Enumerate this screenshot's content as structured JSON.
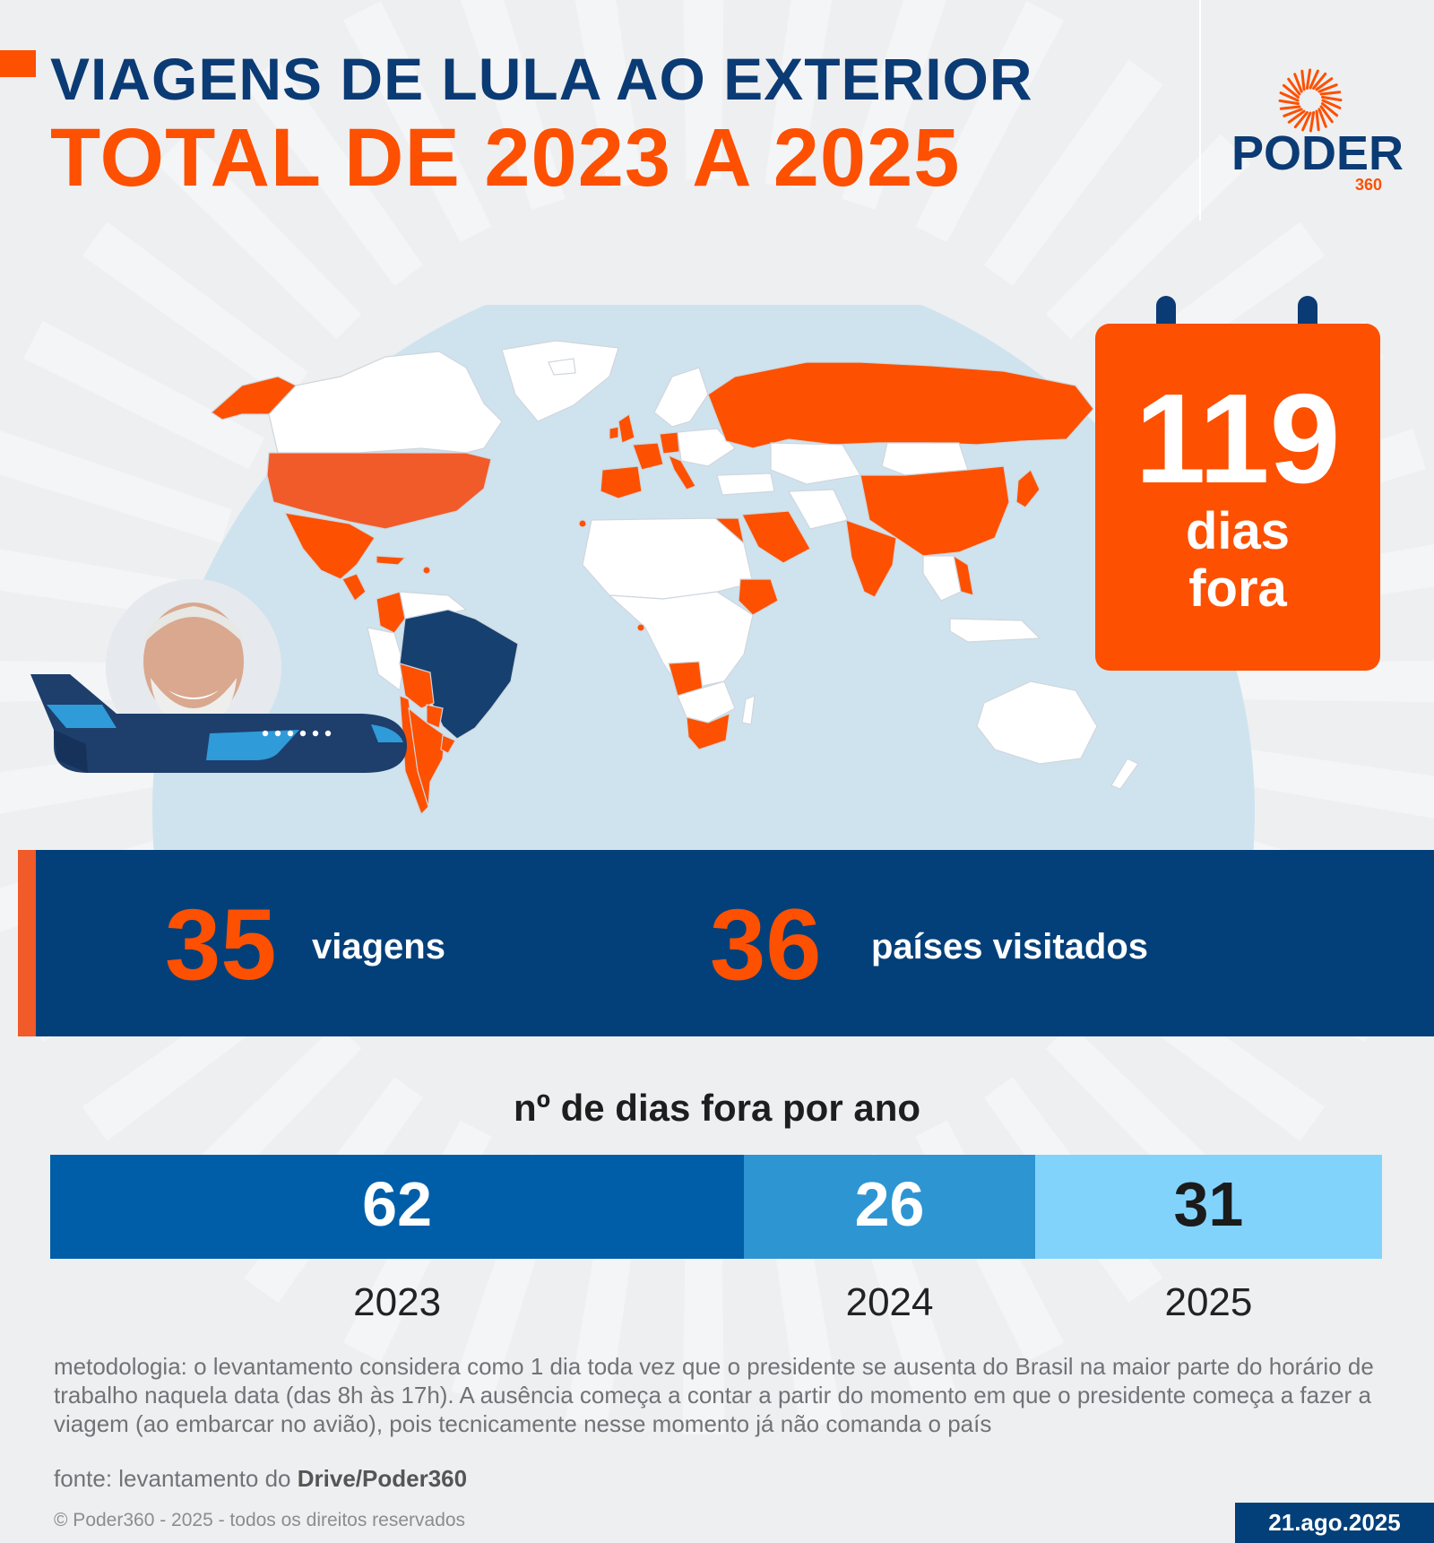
{
  "header": {
    "title_line1": "VIAGENS DE LULA AO EXTERIOR",
    "title_line2": "TOTAL DE 2023 A 2025"
  },
  "logo": {
    "word": "PODER",
    "number": "360"
  },
  "calendar": {
    "value": "119",
    "line1": "dias",
    "line2": "fora"
  },
  "stats": {
    "trips_value": "35",
    "trips_label": "viagens",
    "countries_value": "36",
    "countries_label": "países visitados"
  },
  "map": {
    "visited_color": "#fd5000",
    "brazil_color": "#16406f",
    "other_color": "#ffffff",
    "ocean_color": "#cfe3ee"
  },
  "chart_data": {
    "type": "bar",
    "title": "nº de dias fora por ano",
    "categories": [
      "2023",
      "2024",
      "2025"
    ],
    "values": [
      62,
      26,
      31
    ],
    "colors": [
      "#005ea9",
      "#2e95d3",
      "#82d3fc"
    ],
    "label_colors": [
      "#ffffff",
      "#ffffff",
      "#1b1b1b"
    ]
  },
  "footer": {
    "methodology": "metodologia: o levantamento considera como 1 dia toda vez que o presidente se ausenta do Brasil na maior parte do horário de trabalho naquela data (das 8h às 17h). A ausência começa a contar a partir do momento em que o presidente começa a fazer a viagem (ao embarcar no avião), pois tecnicamente nesse momento já não comanda o país",
    "source_prefix": "fonte: levantamento do ",
    "source_bold": "Drive/Poder360",
    "copyright": "© Poder360 - 2025 - todos os direitos reservados",
    "date": "21.ago.2025"
  }
}
